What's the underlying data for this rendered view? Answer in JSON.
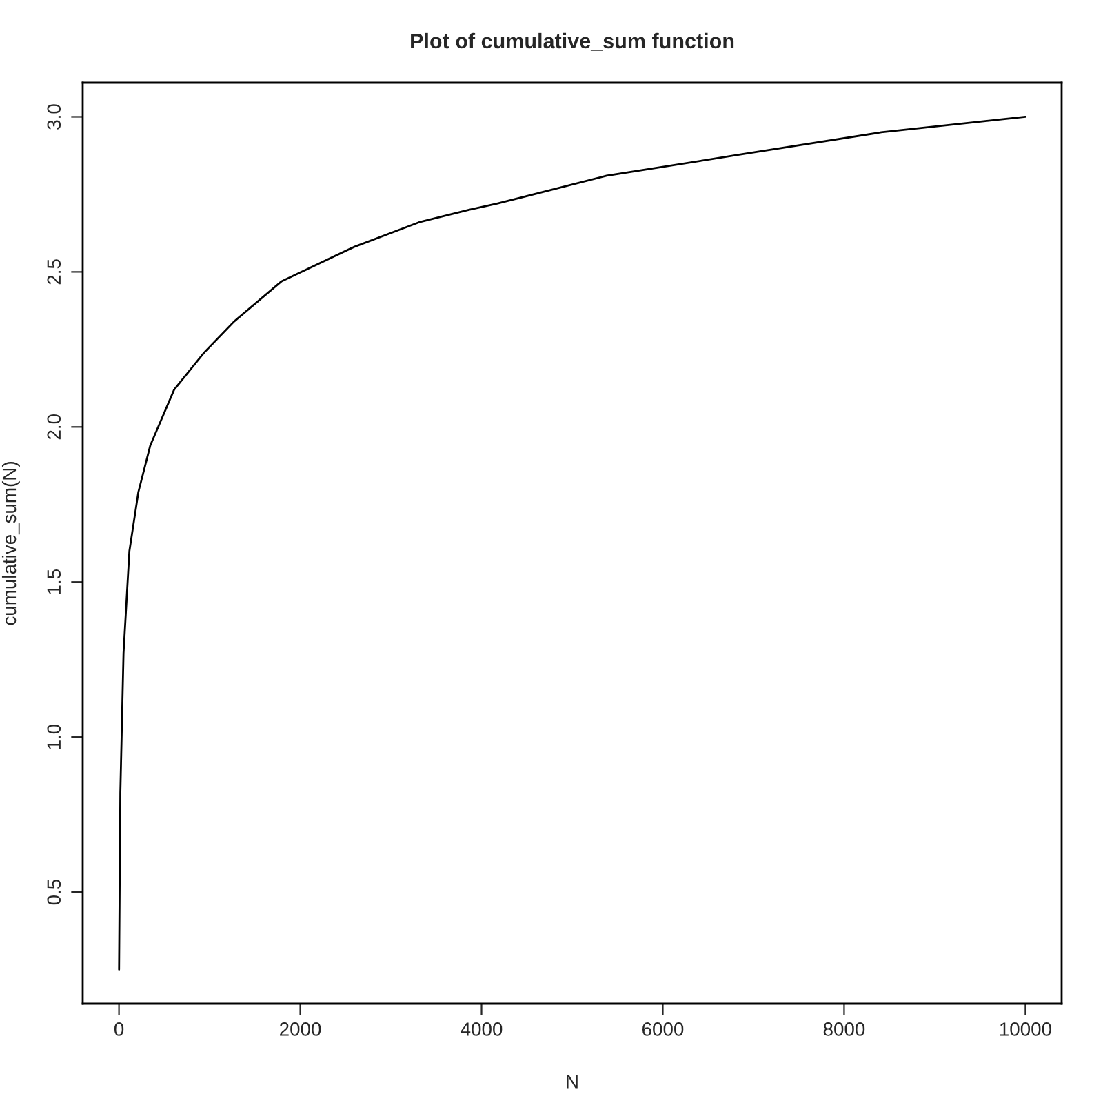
{
  "chart_data": {
    "type": "line",
    "title": "Plot of cumulative_sum function",
    "xlabel": "N",
    "ylabel": "cumulative_sum(N)",
    "x": [
      1,
      15,
      50,
      115,
      214,
      345,
      608,
      940,
      1270,
      1795,
      2590,
      3310,
      3860,
      4170,
      5380,
      6890,
      8410,
      10000
    ],
    "series": [
      {
        "color": "#000000",
        "values": [
          0.25,
          0.82,
          1.27,
          1.6,
          1.79,
          1.94,
          2.12,
          2.24,
          2.34,
          2.47,
          2.58,
          2.66,
          2.7,
          2.72,
          2.81,
          2.88,
          2.95,
          3.0
        ]
      }
    ],
    "xlim": [
      -400,
      10400
    ],
    "ylim": [
      0.14,
      3.11
    ],
    "xticks": [
      0,
      2000,
      4000,
      6000,
      8000,
      10000
    ],
    "yticks": [
      0.5,
      {
        "value": 1,
        "label": "1.0"
      },
      1.5,
      {
        "value": 2,
        "label": "2.0"
      },
      2.5,
      {
        "value": 3,
        "label": "3.0"
      }
    ],
    "grid": false,
    "marker": "none",
    "line_style": "solid"
  }
}
